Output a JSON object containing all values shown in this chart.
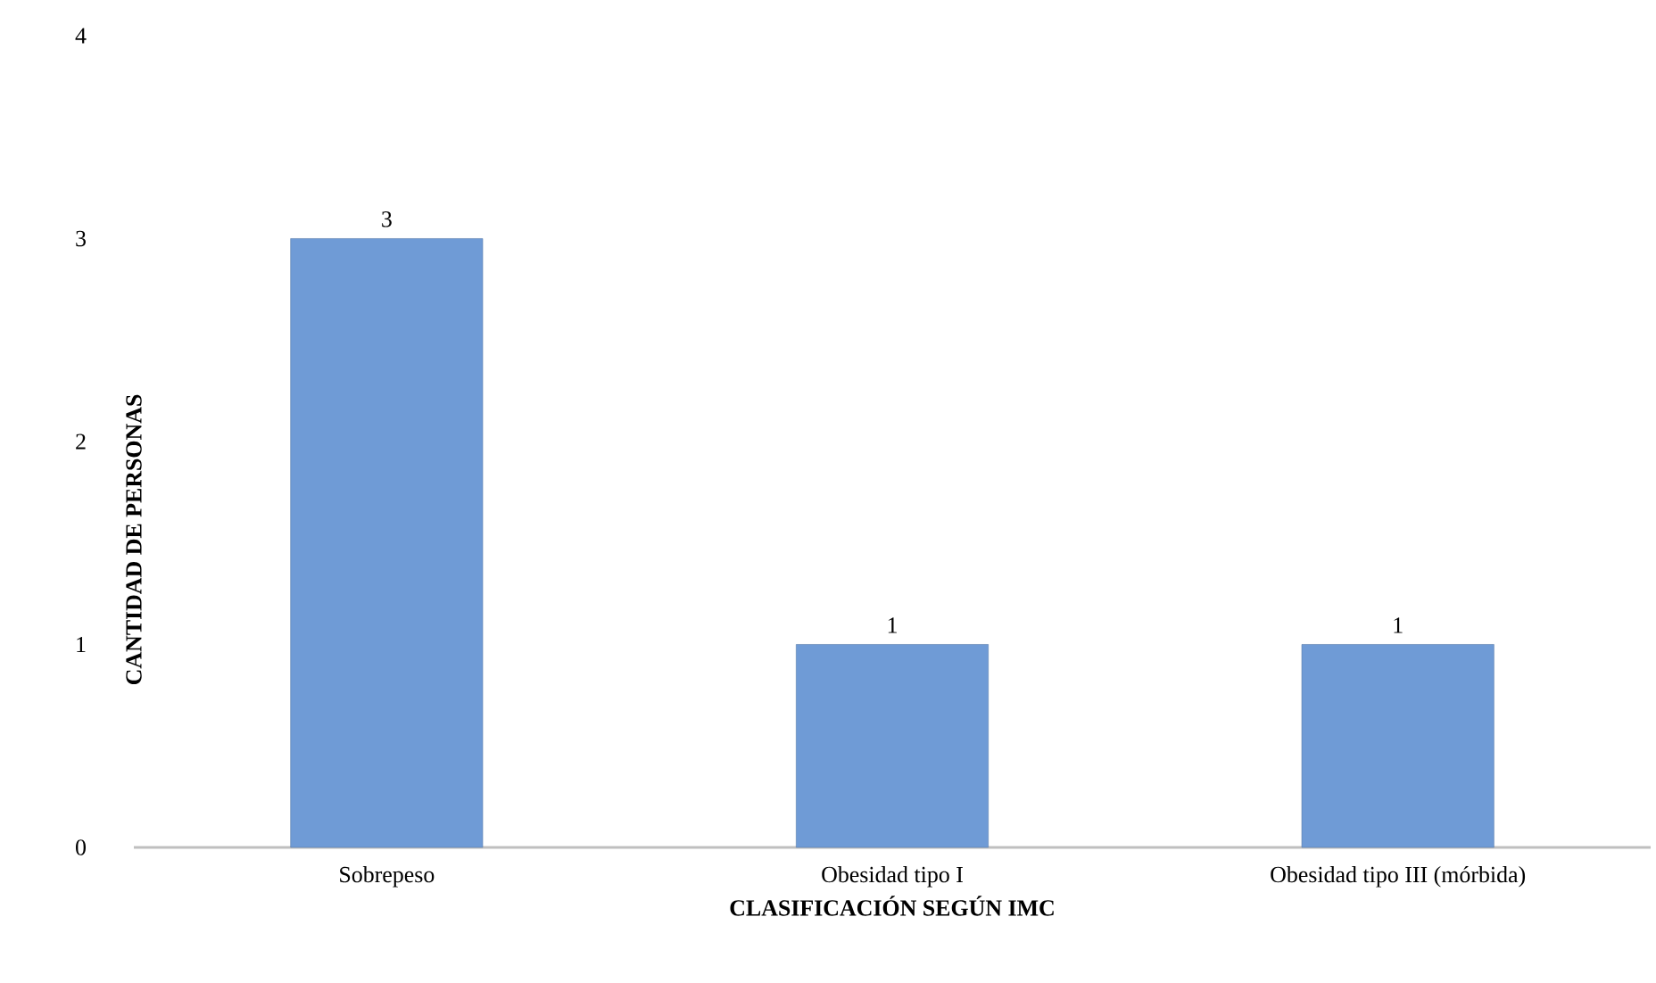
{
  "chart_data": {
    "type": "bar",
    "xlabel": "CLASIFICACIÓN SEGÚN IMC",
    "ylabel": "CANTIDAD DE PERSONAS",
    "categories": [
      "Sobrepeso",
      "Obesidad tipo I",
      "Obesidad tipo III (mórbida)"
    ],
    "values": [
      3,
      1,
      1
    ],
    "color": "#6f9bd6",
    "data_labels": true,
    "ylim": [
      0,
      4
    ],
    "yticks": [
      0,
      1,
      2,
      3,
      4
    ],
    "grid": false
  }
}
